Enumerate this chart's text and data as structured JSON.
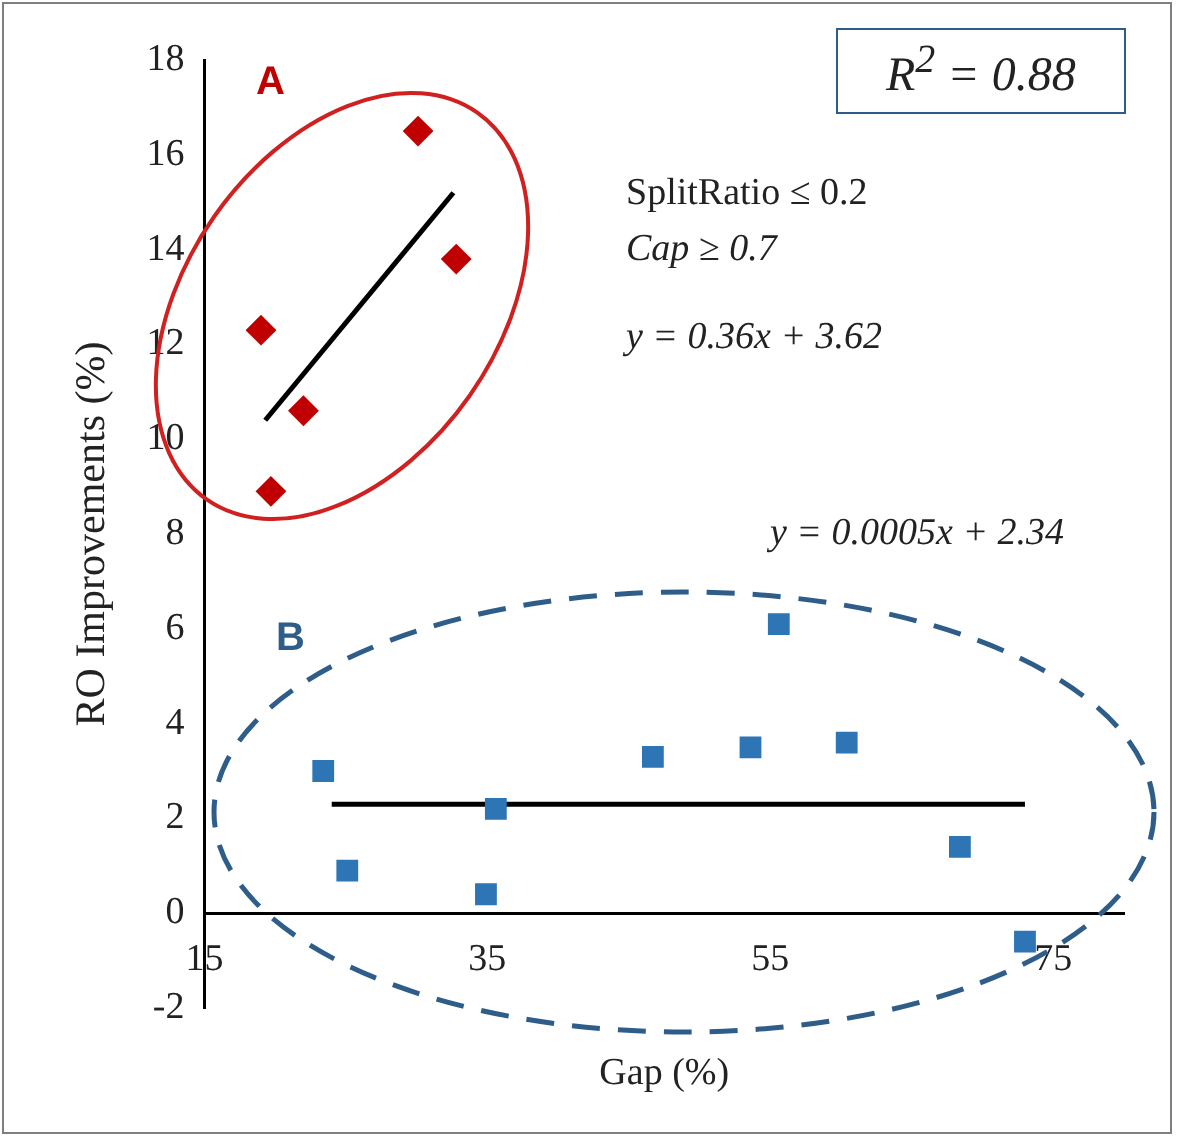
{
  "chart_data": {
    "type": "scatter",
    "xlabel": "Gap (%)",
    "ylabel": "RO Improvements (%)",
    "xlim": [
      15,
      80
    ],
    "xticks": [
      15,
      35,
      55,
      75
    ],
    "ylim": [
      -2,
      18
    ],
    "yticks": [
      -2,
      0,
      2,
      4,
      6,
      8,
      10,
      12,
      14,
      16,
      18
    ],
    "grid": false,
    "legend": false,
    "series": [
      {
        "type": "scatter",
        "marker": "diamond",
        "color": "#c00000",
        "x": [
          19.0,
          22.0,
          19.7,
          30.1,
          32.8
        ],
        "values": [
          12.3,
          10.6,
          8.9,
          16.5,
          13.8
        ]
      },
      {
        "type": "line",
        "marker": "none",
        "color": "#000000",
        "x": [
          19.3,
          32.6
        ],
        "values": [
          10.4,
          15.2
        ]
      },
      {
        "type": "scatter",
        "marker": "square",
        "color": "#2e75b6",
        "x": [
          23.4,
          25.1,
          34.9,
          35.6,
          46.7,
          53.6,
          55.6,
          60.4,
          68.4,
          73.0
        ],
        "values": [
          3.0,
          0.9,
          0.4,
          2.2,
          3.3,
          3.5,
          6.1,
          3.6,
          1.4,
          -0.6
        ]
      },
      {
        "type": "line",
        "marker": "none",
        "color": "#000000",
        "x": [
          24.0,
          73.0
        ],
        "values": [
          2.3,
          2.3
        ]
      }
    ],
    "annotations": [
      "A",
      "SplitRatio ≤ 0.2",
      "Cap ≥ 0.7",
      "y = 0.36x + 3.62",
      "y = 0.0005x + 2.34",
      "B",
      "R$^{2}$ = 0.88"
    ]
  }
}
